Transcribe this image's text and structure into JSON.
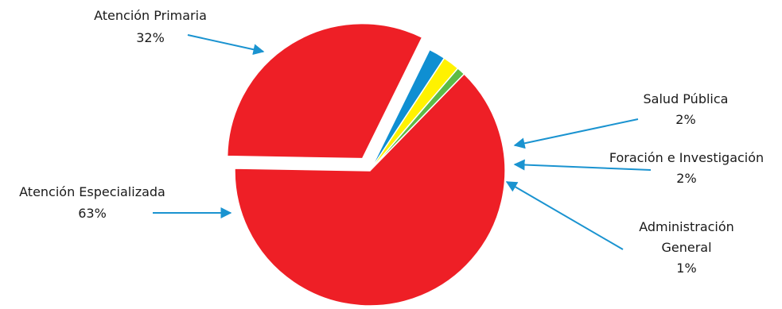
{
  "chart_data": {
    "type": "pie",
    "title": "",
    "slices": [
      {
        "name": "Atención Primaria",
        "value": 32,
        "pct_label": "32%",
        "color": "#ee1f26"
      },
      {
        "name": "Salud Pública",
        "value": 2,
        "pct_label": "2%",
        "color": "#0f8fd2"
      },
      {
        "name": "Foración e Investigación",
        "value": 2,
        "pct_label": "2%",
        "color": "#fff200"
      },
      {
        "name": "Administración General",
        "value": 1,
        "pct_label": "1%",
        "color": "#5cbb46"
      },
      {
        "name": "Atención Especializada",
        "value": 63,
        "pct_label": "63%",
        "color": "#ee1f26"
      }
    ],
    "arrow_color": "#1a93d0",
    "legend": "none"
  },
  "labels": {
    "atencion_primaria": {
      "line1": "Atención Primaria",
      "pct": "32%"
    },
    "salud_publica": {
      "line1": "Salud Pública",
      "pct": "2%"
    },
    "formacion": {
      "line1": "Foración e Investigación",
      "pct": "2%"
    },
    "administracion": {
      "line1": "Administración",
      "line2": "General",
      "pct": "1%"
    },
    "atencion_especializada": {
      "line1": "Atención Especializada",
      "pct": "63%"
    }
  }
}
